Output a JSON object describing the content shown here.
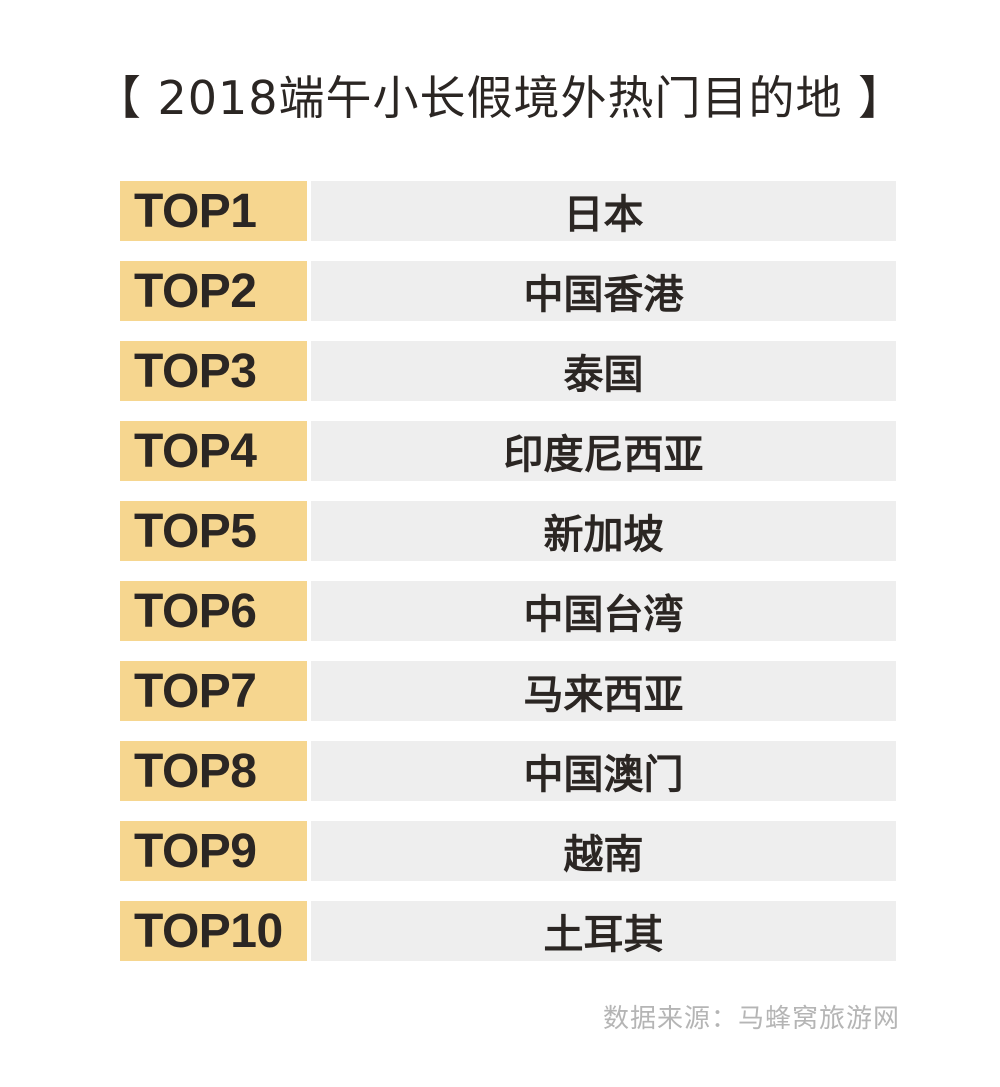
{
  "title": "【 2018端午小长假境外热门目的地 】",
  "ranking": [
    {
      "rank": "TOP1",
      "destination": "日本"
    },
    {
      "rank": "TOP2",
      "destination": "中国香港"
    },
    {
      "rank": "TOP3",
      "destination": "泰国"
    },
    {
      "rank": "TOP4",
      "destination": "印度尼西亚"
    },
    {
      "rank": "TOP5",
      "destination": "新加坡"
    },
    {
      "rank": "TOP6",
      "destination": "中国台湾"
    },
    {
      "rank": "TOP7",
      "destination": "马来西亚"
    },
    {
      "rank": "TOP8",
      "destination": "中国澳门"
    },
    {
      "rank": "TOP9",
      "destination": "越南"
    },
    {
      "rank": "TOP10",
      "destination": "土耳其"
    }
  ],
  "source": "数据来源：马蜂窝旅游网",
  "colors": {
    "rank_background": "#f6d68f",
    "destination_background": "#eeeeee",
    "text": "#2b2623",
    "source_text": "#b5b5b5"
  }
}
